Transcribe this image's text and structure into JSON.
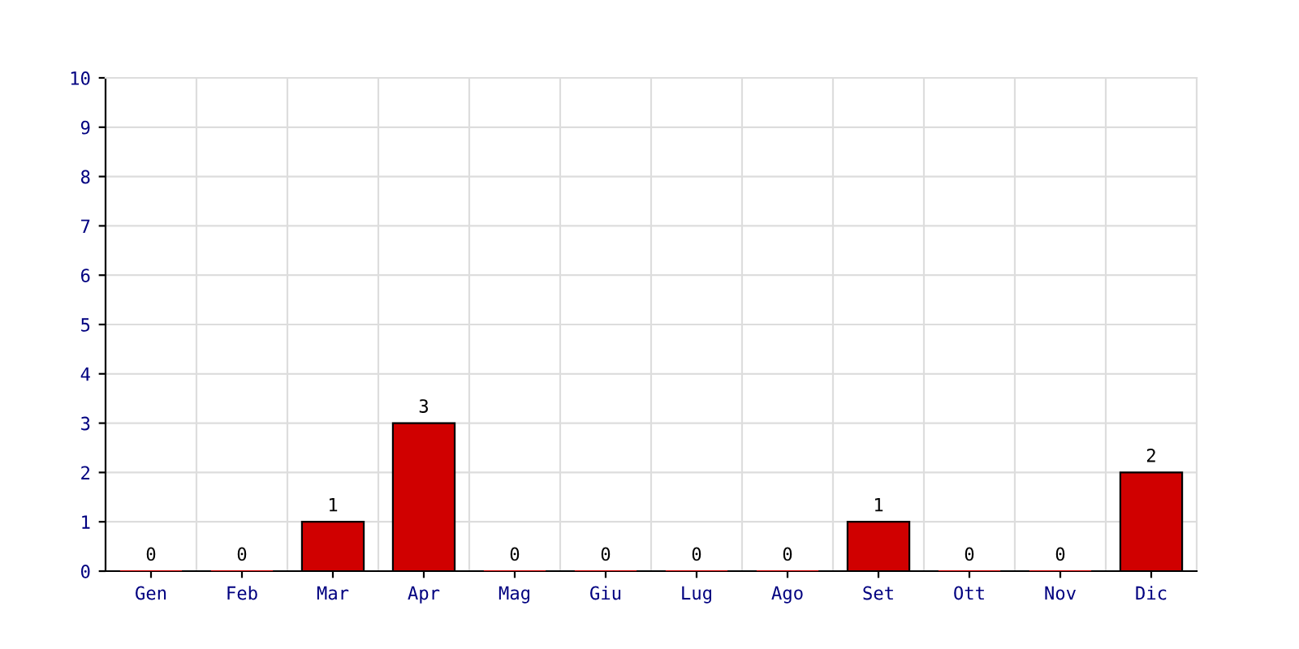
{
  "chart_data": {
    "type": "bar",
    "categories": [
      "Gen",
      "Feb",
      "Mar",
      "Apr",
      "Mag",
      "Giu",
      "Lug",
      "Ago",
      "Set",
      "Ott",
      "Nov",
      "Dic"
    ],
    "values": [
      0,
      0,
      1,
      3,
      0,
      0,
      0,
      0,
      1,
      0,
      0,
      2
    ],
    "color": "#d00000",
    "ylim": [
      0,
      10
    ],
    "yticks": [
      0,
      1,
      2,
      3,
      4,
      5,
      6,
      7,
      8,
      9,
      10
    ],
    "grid": true,
    "data_labels": true
  }
}
